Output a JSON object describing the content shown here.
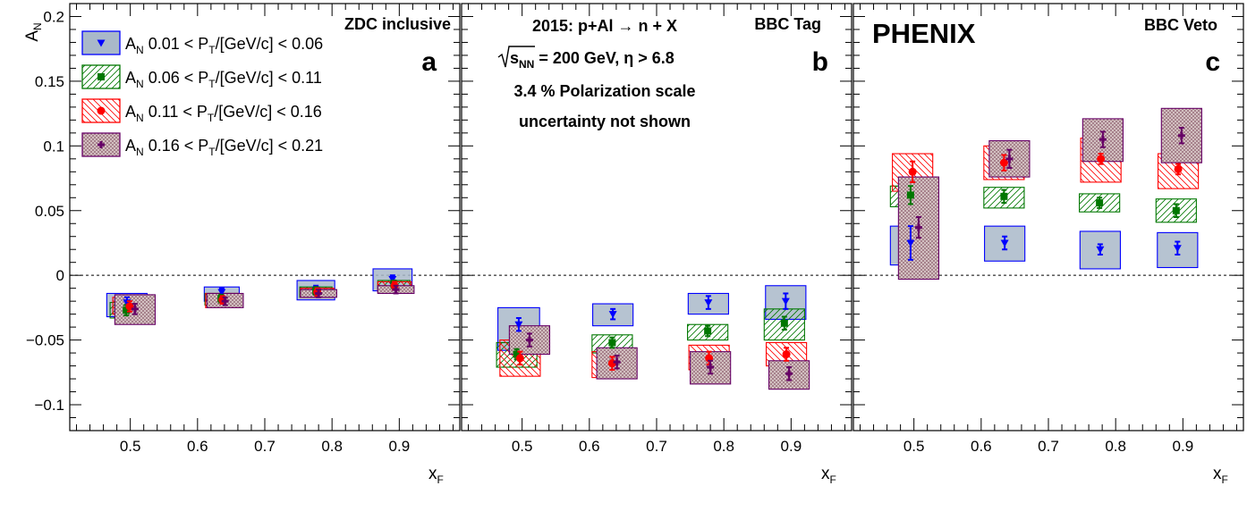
{
  "figure": {
    "experiment_label": "PHENIX",
    "y_axis_label": "A",
    "y_axis_label_sub": "N",
    "x_axis_label": "x",
    "x_axis_label_sub": "F",
    "panel_a_label": "a",
    "panel_b_label": "b",
    "panel_c_label": "c",
    "panel_a_title": "ZDC inclusive",
    "panel_b_title": "BBC Tag",
    "panel_c_title": "BBC Veto",
    "header_line1": "2015: p+Al  → n + X",
    "header_line2_prefix": "s",
    "header_line2_sub": "NN",
    "header_line2_suffix": " = 200 GeV,  η > 6.8",
    "header_line3": "3.4 % Polarization scale",
    "header_line4": "uncertainty not shown",
    "legend": [
      {
        "prefix": "A",
        "sub": "N",
        "text1": " 0.01 < P",
        "sub2": "T",
        "text2": "/[GeV/c] < 0.06"
      },
      {
        "prefix": "A",
        "sub": "N",
        "text1": " 0.06 < P",
        "sub2": "T",
        "text2": "/[GeV/c] < 0.11"
      },
      {
        "prefix": "A",
        "sub": "N",
        "text1": " 0.11 < P",
        "sub2": "T",
        "text2": "/[GeV/c] < 0.16"
      },
      {
        "prefix": "A",
        "sub": "N",
        "text1": " 0.16 < P",
        "sub2": "T",
        "text2": "/[GeV/c] < 0.21"
      }
    ],
    "colors": {
      "s1": "#0000ff",
      "s2": "#007700",
      "s3": "#ff0000",
      "s4": "#660066",
      "box1": "#a9b8c9"
    }
  },
  "chart_data": [
    {
      "type": "scatter",
      "title": "ZDC inclusive",
      "xlabel": "xF",
      "ylabel": "AN",
      "xlim": [
        0.41,
        0.99
      ],
      "ylim": [
        -0.12,
        0.21
      ],
      "xticks": [
        0.5,
        0.6,
        0.7,
        0.8,
        0.9
      ],
      "yticks": [
        -0.1,
        -0.05,
        0,
        0.05,
        0.1,
        0.15,
        0.2
      ],
      "ytick_labels": [
        "−0.1",
        "−0.05",
        "0",
        "0.05",
        "0.1",
        "0.15",
        "0.2"
      ],
      "series": [
        {
          "name": "AN 0.01 < PT/[GeV/c] < 0.06",
          "points": [
            {
              "x": 0.495,
              "y": -0.021,
              "err": 0.004,
              "box_x": [
                0.465,
                0.525
              ],
              "box_y": [
                -0.032,
                -0.014
              ]
            },
            {
              "x": 0.636,
              "y": -0.013,
              "err": 0.003,
              "box_x": [
                0.61,
                0.662
              ],
              "box_y": [
                -0.02,
                -0.009
              ]
            },
            {
              "x": 0.776,
              "y": -0.011,
              "err": 0.003,
              "box_x": [
                0.748,
                0.804
              ],
              "box_y": [
                -0.019,
                -0.004
              ]
            },
            {
              "x": 0.89,
              "y": -0.003,
              "err": 0.003,
              "box_x": [
                0.861,
                0.919
              ],
              "box_y": [
                -0.012,
                0.005
              ]
            }
          ]
        },
        {
          "name": "AN 0.06 < PT/[GeV/c] < 0.11",
          "points": [
            {
              "x": 0.494,
              "y": -0.027,
              "err": 0.004,
              "box_x": [
                0.47,
                0.518
              ],
              "box_y": [
                -0.033,
                -0.021
              ]
            },
            {
              "x": 0.635,
              "y": -0.018,
              "err": 0.003,
              "box_x": [
                0.611,
                0.659
              ],
              "box_y": [
                -0.023,
                -0.014
              ]
            },
            {
              "x": 0.776,
              "y": -0.012,
              "err": 0.003,
              "box_x": [
                0.752,
                0.8
              ],
              "box_y": [
                -0.017,
                -0.009
              ]
            },
            {
              "x": 0.892,
              "y": -0.007,
              "err": 0.003,
              "box_x": [
                0.868,
                0.916
              ],
              "box_y": [
                -0.011,
                -0.004
              ]
            }
          ]
        },
        {
          "name": "AN 0.11 < PT/[GeV/c] < 0.16",
          "points": [
            {
              "x": 0.499,
              "y": -0.024,
              "err": 0.004,
              "box_x": [
                0.474,
                0.524
              ],
              "box_y": [
                -0.03,
                -0.017
              ]
            },
            {
              "x": 0.637,
              "y": -0.019,
              "err": 0.003,
              "box_x": [
                0.612,
                0.662
              ],
              "box_y": [
                -0.025,
                -0.014
              ]
            },
            {
              "x": 0.778,
              "y": -0.013,
              "err": 0.003,
              "box_x": [
                0.753,
                0.803
              ],
              "box_y": [
                -0.017,
                -0.01
              ]
            },
            {
              "x": 0.893,
              "y": -0.008,
              "err": 0.003,
              "box_x": [
                0.868,
                0.918
              ],
              "box_y": [
                -0.013,
                -0.005
              ]
            }
          ]
        },
        {
          "name": "AN 0.16 < PT/[GeV/c] < 0.21",
          "points": [
            {
              "x": 0.507,
              "y": -0.026,
              "err": 0.004,
              "box_x": [
                0.477,
                0.537
              ],
              "box_y": [
                -0.038,
                -0.015
              ]
            },
            {
              "x": 0.641,
              "y": -0.02,
              "err": 0.003,
              "box_x": [
                0.614,
                0.668
              ],
              "box_y": [
                -0.025,
                -0.014
              ]
            },
            {
              "x": 0.78,
              "y": -0.014,
              "err": 0.003,
              "box_x": [
                0.753,
                0.807
              ],
              "box_y": [
                -0.017,
                -0.011
              ]
            },
            {
              "x": 0.895,
              "y": -0.011,
              "err": 0.003,
              "box_x": [
                0.868,
                0.922
              ],
              "box_y": [
                -0.014,
                -0.008
              ]
            }
          ]
        }
      ]
    },
    {
      "type": "scatter",
      "title": "BBC Tag",
      "xlabel": "xF",
      "ylabel": "AN",
      "xlim": [
        0.41,
        0.99
      ],
      "ylim": [
        -0.12,
        0.21
      ],
      "xticks": [
        0.5,
        0.6,
        0.7,
        0.8,
        0.9
      ],
      "yticks": [
        -0.1,
        -0.05,
        0,
        0.05,
        0.1,
        0.15,
        0.2
      ],
      "series": [
        {
          "name": "AN 0.01 < PT/[GeV/c] < 0.06",
          "points": [
            {
              "x": 0.495,
              "y": -0.038,
              "err": 0.005,
              "box_x": [
                0.464,
                0.526
              ],
              "box_y": [
                -0.058,
                -0.025
              ]
            },
            {
              "x": 0.635,
              "y": -0.03,
              "err": 0.004,
              "box_x": [
                0.605,
                0.665
              ],
              "box_y": [
                -0.039,
                -0.022
              ]
            },
            {
              "x": 0.777,
              "y": -0.021,
              "err": 0.005,
              "box_x": [
                0.747,
                0.807
              ],
              "box_y": [
                -0.03,
                -0.014
              ]
            },
            {
              "x": 0.892,
              "y": -0.02,
              "err": 0.006,
              "box_x": [
                0.862,
                0.922
              ],
              "box_y": [
                -0.034,
                -0.008
              ]
            }
          ]
        },
        {
          "name": "AN 0.06 < PT/[GeV/c] < 0.11",
          "points": [
            {
              "x": 0.492,
              "y": -0.061,
              "err": 0.004,
              "box_x": [
                0.462,
                0.522
              ],
              "box_y": [
                -0.071,
                -0.052
              ]
            },
            {
              "x": 0.634,
              "y": -0.052,
              "err": 0.004,
              "box_x": [
                0.604,
                0.664
              ],
              "box_y": [
                -0.06,
                -0.046
              ]
            },
            {
              "x": 0.776,
              "y": -0.043,
              "err": 0.004,
              "box_x": [
                0.746,
                0.806
              ],
              "box_y": [
                -0.05,
                -0.038
              ]
            },
            {
              "x": 0.89,
              "y": -0.037,
              "err": 0.005,
              "box_x": [
                0.86,
                0.92
              ],
              "box_y": [
                -0.05,
                -0.026
              ]
            }
          ]
        },
        {
          "name": "AN 0.11 < PT/[GeV/c] < 0.16",
          "points": [
            {
              "x": 0.497,
              "y": -0.064,
              "err": 0.005,
              "box_x": [
                0.467,
                0.527
              ],
              "box_y": [
                -0.078,
                -0.05
              ]
            },
            {
              "x": 0.634,
              "y": -0.068,
              "err": 0.005,
              "box_x": [
                0.604,
                0.664
              ],
              "box_y": [
                -0.079,
                -0.059
              ]
            },
            {
              "x": 0.778,
              "y": -0.064,
              "err": 0.005,
              "box_x": [
                0.748,
                0.808
              ],
              "box_y": [
                -0.073,
                -0.054
              ]
            },
            {
              "x": 0.893,
              "y": -0.061,
              "err": 0.005,
              "box_x": [
                0.863,
                0.923
              ],
              "box_y": [
                -0.07,
                -0.052
              ]
            }
          ]
        },
        {
          "name": "AN 0.16 < PT/[GeV/c] < 0.21",
          "points": [
            {
              "x": 0.511,
              "y": -0.05,
              "err": 0.005,
              "box_x": [
                0.481,
                0.541
              ],
              "box_y": [
                -0.061,
                -0.039
              ]
            },
            {
              "x": 0.641,
              "y": -0.067,
              "err": 0.005,
              "box_x": [
                0.611,
                0.671
              ],
              "box_y": [
                -0.08,
                -0.056
              ]
            },
            {
              "x": 0.78,
              "y": -0.071,
              "err": 0.005,
              "box_x": [
                0.75,
                0.81
              ],
              "box_y": [
                -0.084,
                -0.059
              ]
            },
            {
              "x": 0.897,
              "y": -0.076,
              "err": 0.005,
              "box_x": [
                0.867,
                0.927
              ],
              "box_y": [
                -0.088,
                -0.066
              ]
            }
          ]
        }
      ]
    },
    {
      "type": "scatter",
      "title": "BBC Veto",
      "xlabel": "xF",
      "ylabel": "AN",
      "xlim": [
        0.41,
        0.99
      ],
      "ylim": [
        -0.12,
        0.21
      ],
      "xticks": [
        0.5,
        0.6,
        0.7,
        0.8,
        0.9
      ],
      "yticks": [
        -0.1,
        -0.05,
        0,
        0.05,
        0.1,
        0.15,
        0.2
      ],
      "series": [
        {
          "name": "AN 0.01 < PT/[GeV/c] < 0.06",
          "points": [
            {
              "x": 0.495,
              "y": 0.025,
              "err": 0.013,
              "box_x": [
                0.465,
                0.525
              ],
              "box_y": [
                0.008,
                0.038
              ]
            },
            {
              "x": 0.635,
              "y": 0.025,
              "err": 0.005,
              "box_x": [
                0.605,
                0.665
              ],
              "box_y": [
                0.011,
                0.038
              ]
            },
            {
              "x": 0.777,
              "y": 0.02,
              "err": 0.004,
              "box_x": [
                0.747,
                0.807
              ],
              "box_y": [
                0.005,
                0.034
              ]
            },
            {
              "x": 0.892,
              "y": 0.021,
              "err": 0.005,
              "box_x": [
                0.862,
                0.922
              ],
              "box_y": [
                0.006,
                0.033
              ]
            }
          ]
        },
        {
          "name": "AN 0.06 < PT/[GeV/c] < 0.11",
          "points": [
            {
              "x": 0.495,
              "y": 0.062,
              "err": 0.007,
              "box_x": [
                0.465,
                0.525
              ],
              "box_y": [
                0.053,
                0.069
              ]
            },
            {
              "x": 0.634,
              "y": 0.061,
              "err": 0.005,
              "box_x": [
                0.604,
                0.664
              ],
              "box_y": [
                0.052,
                0.068
              ]
            },
            {
              "x": 0.776,
              "y": 0.056,
              "err": 0.004,
              "box_x": [
                0.746,
                0.806
              ],
              "box_y": [
                0.049,
                0.063
              ]
            },
            {
              "x": 0.89,
              "y": 0.05,
              "err": 0.005,
              "box_x": [
                0.86,
                0.92
              ],
              "box_y": [
                0.041,
                0.059
              ]
            }
          ]
        },
        {
          "name": "AN 0.11 < PT/[GeV/c] < 0.16",
          "points": [
            {
              "x": 0.498,
              "y": 0.08,
              "err": 0.008,
              "box_x": [
                0.468,
                0.528
              ],
              "box_y": [
                0.065,
                0.094
              ]
            },
            {
              "x": 0.634,
              "y": 0.087,
              "err": 0.006,
              "box_x": [
                0.604,
                0.664
              ],
              "box_y": [
                0.074,
                0.1
              ]
            },
            {
              "x": 0.778,
              "y": 0.09,
              "err": 0.004,
              "box_x": [
                0.748,
                0.808
              ],
              "box_y": [
                0.072,
                0.106
              ]
            },
            {
              "x": 0.893,
              "y": 0.082,
              "err": 0.004,
              "box_x": [
                0.863,
                0.923
              ],
              "box_y": [
                0.067,
                0.094
              ]
            }
          ]
        },
        {
          "name": "AN 0.16 < PT/[GeV/c] < 0.21",
          "points": [
            {
              "x": 0.507,
              "y": 0.037,
              "err": 0.008,
              "box_x": [
                0.477,
                0.537
              ],
              "box_y": [
                -0.003,
                0.076
              ]
            },
            {
              "x": 0.642,
              "y": 0.09,
              "err": 0.007,
              "box_x": [
                0.612,
                0.672
              ],
              "box_y": [
                0.076,
                0.104
              ]
            },
            {
              "x": 0.781,
              "y": 0.105,
              "err": 0.006,
              "box_x": [
                0.751,
                0.811
              ],
              "box_y": [
                0.088,
                0.121
              ]
            },
            {
              "x": 0.898,
              "y": 0.108,
              "err": 0.006,
              "box_x": [
                0.868,
                0.928
              ],
              "box_y": [
                0.087,
                0.129
              ]
            }
          ]
        }
      ]
    }
  ]
}
